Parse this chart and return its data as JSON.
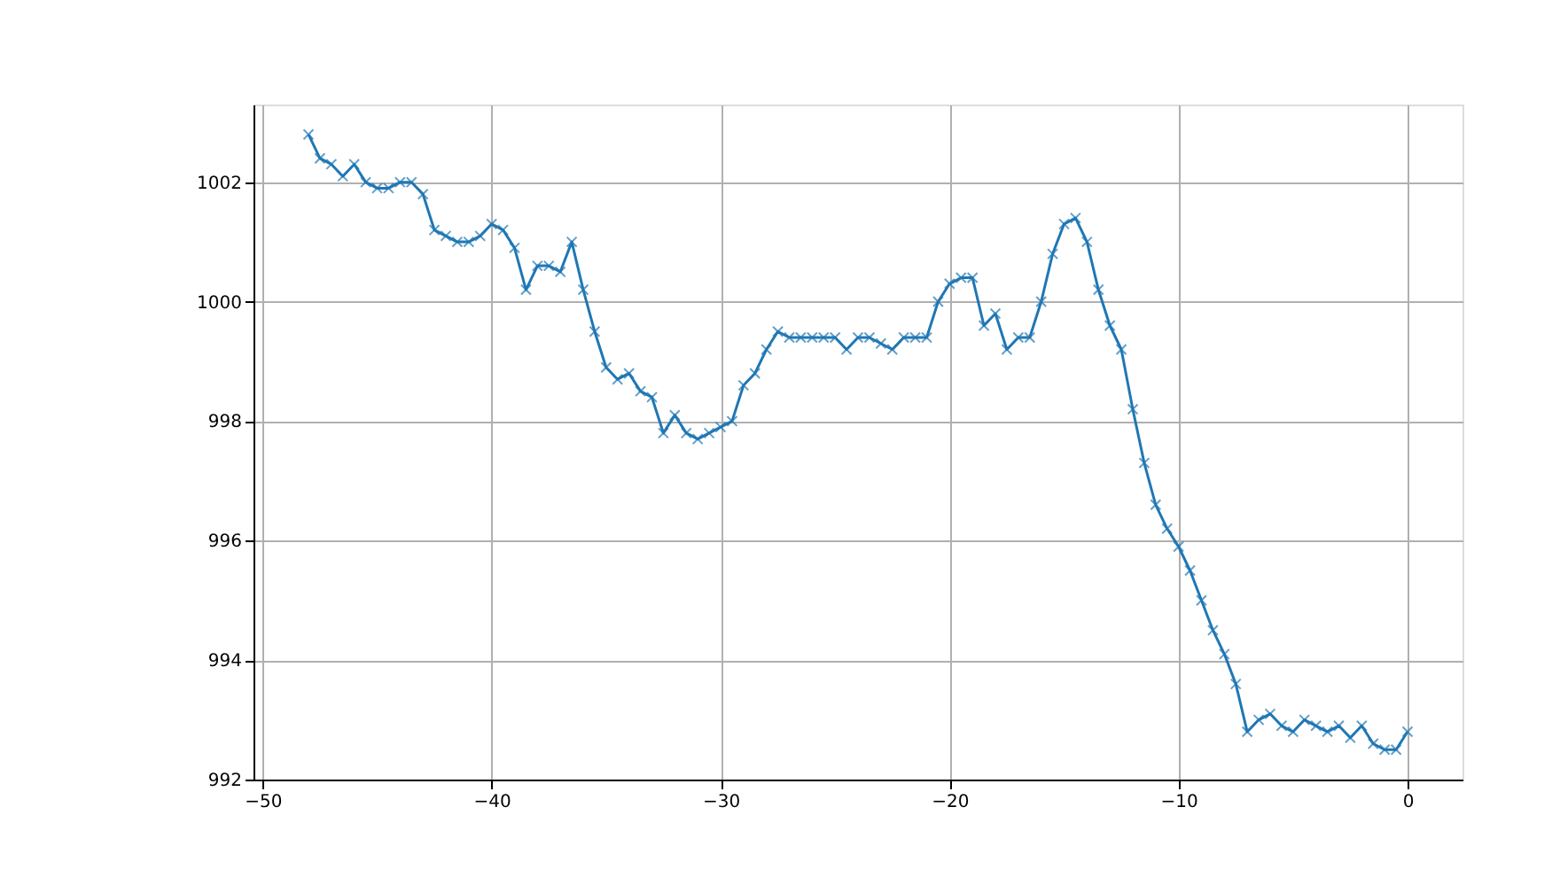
{
  "chart_data": {
    "type": "line",
    "x": [
      -48,
      -47.5,
      -47,
      -46.5,
      -46,
      -45.5,
      -45,
      -44.5,
      -44,
      -43.5,
      -43,
      -42.5,
      -42,
      -41.5,
      -41,
      -40.5,
      -40,
      -39.5,
      -39,
      -38.5,
      -38,
      -37.5,
      -37,
      -36.5,
      -36,
      -35.5,
      -35,
      -34.5,
      -34,
      -33.5,
      -33,
      -32.5,
      -32,
      -31.5,
      -31,
      -30.5,
      -30,
      -29.5,
      -29,
      -28.5,
      -28,
      -27.5,
      -27,
      -26.5,
      -26,
      -25.5,
      -25,
      -24.5,
      -24,
      -23.5,
      -23,
      -22.5,
      -22,
      -21.5,
      -21,
      -20.5,
      -20,
      -19.5,
      -19,
      -18.5,
      -18,
      -17.5,
      -17,
      -16.5,
      -16,
      -15.5,
      -15,
      -14.5,
      -14,
      -13.5,
      -13,
      -12.5,
      -12,
      -11.5,
      -11,
      -10.5,
      -10,
      -9.5,
      -9,
      -8.5,
      -8,
      -7.5,
      -7,
      -6.5,
      -6,
      -5.5,
      -5,
      -4.5,
      -4,
      -3.5,
      -3,
      -2.5,
      -2,
      -1.5,
      -1,
      -0.5,
      0
    ],
    "series": [
      {
        "color": "#1f77b4",
        "values": [
          1002.8,
          1002.4,
          1002.3,
          1002.1,
          1002.3,
          1002.0,
          1001.9,
          1001.9,
          1002.0,
          1002.0,
          1001.8,
          1001.2,
          1001.1,
          1001.0,
          1001.0,
          1001.1,
          1001.3,
          1001.2,
          1000.9,
          1000.2,
          1000.6,
          1000.6,
          1000.5,
          1001.0,
          1000.2,
          999.5,
          998.9,
          998.7,
          998.8,
          998.5,
          998.4,
          997.8,
          998.1,
          997.8,
          997.7,
          997.8,
          997.9,
          998.0,
          998.6,
          998.8,
          999.2,
          999.5,
          999.4,
          999.4,
          999.4,
          999.4,
          999.4,
          999.2,
          999.4,
          999.4,
          999.3,
          999.2,
          999.4,
          999.4,
          999.4,
          1000.0,
          1000.3,
          1000.4,
          1000.4,
          999.6,
          999.8,
          999.2,
          999.4,
          999.4,
          1000.0,
          1000.8,
          1001.3,
          1001.4,
          1001.0,
          1000.2,
          999.6,
          999.2,
          998.2,
          997.3,
          996.6,
          996.2,
          995.9,
          995.5,
          995.0,
          994.5,
          994.1,
          993.6,
          992.8,
          993.0,
          993.1,
          992.9,
          992.8,
          993.0,
          992.9,
          992.8,
          992.9,
          992.7,
          992.9,
          992.6,
          992.5,
          992.5,
          992.8
        ]
      }
    ],
    "xlim": [
      -50.4,
      2.4
    ],
    "ylim": [
      992,
      1003.3
    ],
    "xticks": [
      -50,
      -40,
      -30,
      -20,
      -10,
      0
    ],
    "yticks": [
      992,
      994,
      996,
      998,
      1000,
      1002
    ],
    "grid": true,
    "marker": "cross",
    "line_style": "solid"
  }
}
